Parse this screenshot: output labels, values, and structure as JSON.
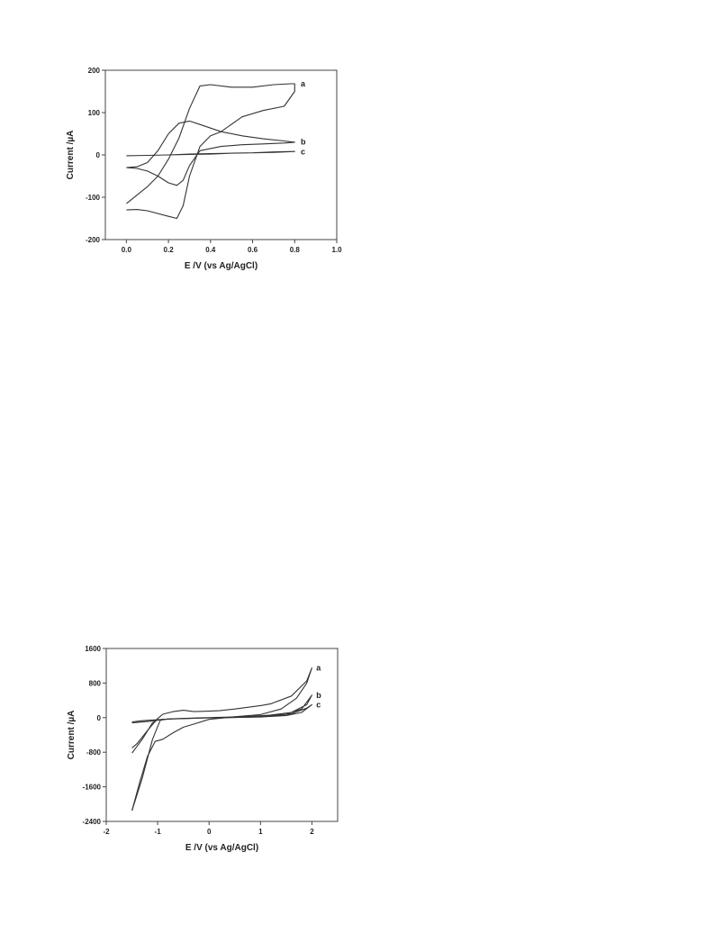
{
  "chart_data": [
    {
      "type": "line",
      "xlabel": "E /V (vs Ag/AgCl)",
      "ylabel": "Current /µA",
      "xlim": [
        -0.1,
        1.0
      ],
      "ylim": [
        -200,
        200
      ],
      "xticks": [
        0.0,
        0.2,
        0.4,
        0.6,
        0.8,
        1.0
      ],
      "xtick_labels": [
        "0.0",
        "0.2",
        "0.4",
        "0.6",
        "0.8",
        "1.0"
      ],
      "yticks": [
        -200,
        -100,
        0,
        100,
        200
      ],
      "ytick_labels": [
        "-200",
        "-100",
        "0",
        "100",
        "200"
      ],
      "grid": false,
      "legend": "none",
      "series": [
        {
          "name": "a",
          "label_at": [
            0.82,
            168
          ],
          "points": [
            [
              0.0,
              -115
            ],
            [
              0.05,
              -95
            ],
            [
              0.1,
              -75
            ],
            [
              0.15,
              -50
            ],
            [
              0.2,
              -10
            ],
            [
              0.25,
              40
            ],
            [
              0.3,
              110
            ],
            [
              0.35,
              163
            ],
            [
              0.4,
              166
            ],
            [
              0.5,
              160
            ],
            [
              0.6,
              160
            ],
            [
              0.7,
              166
            ],
            [
              0.78,
              168
            ],
            [
              0.8,
              168
            ],
            [
              0.8,
              150
            ],
            [
              0.75,
              115
            ],
            [
              0.65,
              105
            ],
            [
              0.55,
              90
            ],
            [
              0.45,
              55
            ],
            [
              0.4,
              45
            ],
            [
              0.35,
              20
            ],
            [
              0.3,
              -50
            ],
            [
              0.27,
              -120
            ],
            [
              0.24,
              -150
            ],
            [
              0.2,
              -145
            ],
            [
              0.1,
              -132
            ],
            [
              0.05,
              -129
            ],
            [
              0.0,
              -130
            ]
          ]
        },
        {
          "name": "b",
          "label_at": [
            0.82,
            31
          ],
          "points": [
            [
              0.0,
              -30
            ],
            [
              0.05,
              -28
            ],
            [
              0.1,
              -18
            ],
            [
              0.15,
              10
            ],
            [
              0.2,
              50
            ],
            [
              0.25,
              75
            ],
            [
              0.3,
              80
            ],
            [
              0.35,
              72
            ],
            [
              0.45,
              55
            ],
            [
              0.55,
              45
            ],
            [
              0.65,
              38
            ],
            [
              0.75,
              33
            ],
            [
              0.8,
              30
            ],
            [
              0.75,
              28
            ],
            [
              0.65,
              26
            ],
            [
              0.55,
              24
            ],
            [
              0.45,
              20
            ],
            [
              0.35,
              10
            ],
            [
              0.3,
              -25
            ],
            [
              0.27,
              -60
            ],
            [
              0.24,
              -72
            ],
            [
              0.2,
              -66
            ],
            [
              0.15,
              -50
            ],
            [
              0.1,
              -38
            ],
            [
              0.05,
              -32
            ],
            [
              0.0,
              -30
            ]
          ]
        },
        {
          "name": "c",
          "label_at": [
            0.82,
            7
          ],
          "points": [
            [
              0.0,
              -2
            ],
            [
              0.1,
              -1
            ],
            [
              0.2,
              0
            ],
            [
              0.3,
              2
            ],
            [
              0.4,
              3
            ],
            [
              0.5,
              4
            ],
            [
              0.6,
              5
            ],
            [
              0.7,
              6
            ],
            [
              0.8,
              8
            ],
            [
              0.7,
              7
            ],
            [
              0.6,
              5
            ],
            [
              0.5,
              4
            ],
            [
              0.4,
              2
            ],
            [
              0.3,
              1
            ],
            [
              0.2,
              0
            ],
            [
              0.1,
              -1
            ],
            [
              0.0,
              -2
            ]
          ]
        }
      ]
    },
    {
      "type": "line",
      "xlabel": "E /V (vs Ag/AgCl)",
      "ylabel": "Current /µA",
      "xlim": [
        -2,
        2.5
      ],
      "ylim": [
        -2400,
        1600
      ],
      "xticks": [
        -2,
        -1,
        0,
        1,
        2
      ],
      "xtick_labels": [
        "-2",
        "-1",
        "0",
        "1",
        "2"
      ],
      "yticks": [
        -2400,
        -1600,
        -800,
        0,
        800,
        1600
      ],
      "ytick_labels": [
        "-2400",
        "-1600",
        "-800",
        "0",
        "800",
        "1600"
      ],
      "grid": false,
      "legend": "none",
      "series": [
        {
          "name": "a",
          "label_at": [
            2.05,
            1150
          ],
          "points": [
            [
              -1.5,
              -2150
            ],
            [
              -1.35,
              -1500
            ],
            [
              -1.2,
              -900
            ],
            [
              -1.05,
              -550
            ],
            [
              -0.9,
              -500
            ],
            [
              -0.7,
              -350
            ],
            [
              -0.5,
              -220
            ],
            [
              -0.3,
              -150
            ],
            [
              0.0,
              -40
            ],
            [
              0.5,
              20
            ],
            [
              1.0,
              70
            ],
            [
              1.4,
              200
            ],
            [
              1.7,
              450
            ],
            [
              1.9,
              800
            ],
            [
              2.0,
              1150
            ],
            [
              1.9,
              850
            ],
            [
              1.6,
              500
            ],
            [
              1.2,
              320
            ],
            [
              1.0,
              280
            ],
            [
              0.5,
              200
            ],
            [
              0.2,
              160
            ],
            [
              0.0,
              150
            ],
            [
              -0.3,
              140
            ],
            [
              -0.5,
              170
            ],
            [
              -0.7,
              140
            ],
            [
              -0.9,
              80
            ],
            [
              -1.0,
              -20
            ],
            [
              -1.2,
              -300
            ],
            [
              -1.4,
              -600
            ],
            [
              -1.5,
              -700
            ]
          ]
        },
        {
          "name": "b",
          "label_at": [
            2.05,
            520
          ],
          "points": [
            [
              -1.5,
              -2150
            ],
            [
              -1.3,
              -1400
            ],
            [
              -1.1,
              -500
            ],
            [
              -0.95,
              -60
            ],
            [
              -0.8,
              -30
            ],
            [
              -0.5,
              -20
            ],
            [
              0.0,
              -5
            ],
            [
              0.5,
              5
            ],
            [
              1.0,
              20
            ],
            [
              1.5,
              80
            ],
            [
              1.8,
              200
            ],
            [
              2.0,
              520
            ],
            [
              1.9,
              300
            ],
            [
              1.6,
              120
            ],
            [
              1.2,
              60
            ],
            [
              0.8,
              30
            ],
            [
              0.3,
              10
            ],
            [
              -0.2,
              -5
            ],
            [
              -0.6,
              -20
            ],
            [
              -0.9,
              -40
            ],
            [
              -1.1,
              -80
            ],
            [
              -1.5,
              -120
            ]
          ]
        },
        {
          "name": "c",
          "label_at": [
            2.05,
            300
          ],
          "points": [
            [
              -1.5,
              -820
            ],
            [
              -1.3,
              -500
            ],
            [
              -1.1,
              -120
            ],
            [
              -1.0,
              -50
            ],
            [
              -0.7,
              -30
            ],
            [
              -0.3,
              -15
            ],
            [
              0.0,
              -5
            ],
            [
              0.5,
              5
            ],
            [
              1.0,
              15
            ],
            [
              1.5,
              50
            ],
            [
              1.8,
              120
            ],
            [
              2.0,
              300
            ],
            [
              1.9,
              220
            ],
            [
              1.6,
              90
            ],
            [
              1.2,
              40
            ],
            [
              0.8,
              20
            ],
            [
              0.3,
              5
            ],
            [
              -0.2,
              -10
            ],
            [
              -0.6,
              -25
            ],
            [
              -1.0,
              -45
            ],
            [
              -1.3,
              -70
            ],
            [
              -1.5,
              -100
            ]
          ]
        }
      ]
    }
  ]
}
